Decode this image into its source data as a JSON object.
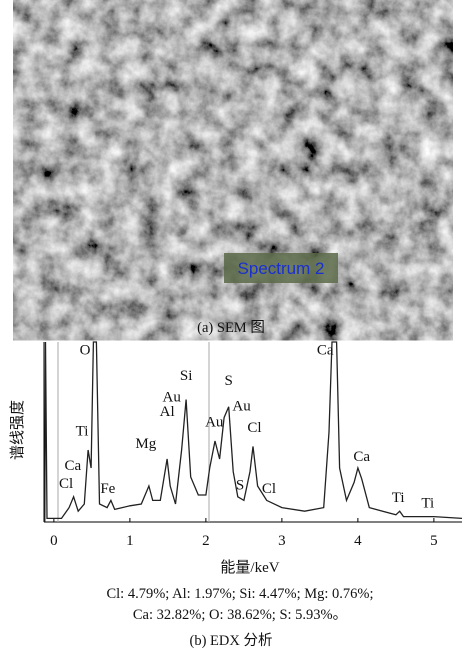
{
  "sem": {
    "label": "Spectrum 2",
    "caption": "(a)  SEM 图"
  },
  "chart_data": {
    "type": "line",
    "x": [
      -0.12,
      -0.11,
      -0.09,
      0.1,
      0.2,
      0.26,
      0.32,
      0.4,
      0.45,
      0.49,
      0.52,
      0.56,
      0.6,
      0.7,
      0.75,
      0.8,
      1.0,
      1.15,
      1.25,
      1.3,
      1.4,
      1.49,
      1.53,
      1.6,
      1.68,
      1.74,
      1.8,
      1.9,
      2.0,
      2.05,
      2.12,
      2.18,
      2.24,
      2.3,
      2.36,
      2.42,
      2.5,
      2.58,
      2.62,
      2.68,
      2.8,
      3.0,
      3.3,
      3.55,
      3.62,
      3.66,
      3.72,
      3.76,
      3.85,
      3.95,
      4.0,
      4.05,
      4.15,
      4.5,
      4.55,
      4.6,
      5.0,
      5.37
    ],
    "values": [
      0,
      100,
      2,
      2,
      8,
      14,
      6,
      10,
      40,
      30,
      100,
      100,
      10,
      8,
      12,
      7,
      9,
      10,
      20,
      12,
      12,
      35,
      20,
      10,
      40,
      68,
      25,
      15,
      15,
      30,
      45,
      35,
      58,
      64,
      28,
      14,
      12,
      28,
      42,
      20,
      12,
      8,
      6,
      8,
      50,
      100,
      100,
      30,
      12,
      22,
      30,
      24,
      8,
      4,
      6,
      3,
      3,
      2
    ],
    "color": "#222222",
    "xlim": [
      -0.13,
      5.37
    ],
    "ylim": [
      0,
      100
    ],
    "xticks": [
      0,
      1,
      2,
      3,
      4,
      5
    ],
    "xlabel": "能量/keV",
    "ylabel": "谱线强度",
    "annotations": [
      {
        "text": "O",
        "x": 0.41,
        "y": 93
      },
      {
        "text": "Ti",
        "x": 0.37,
        "y": 48
      },
      {
        "text": "Ca",
        "x": 0.25,
        "y": 29
      },
      {
        "text": "Cl",
        "x": 0.16,
        "y": 19
      },
      {
        "text": "Fe",
        "x": 0.71,
        "y": 16
      },
      {
        "text": "Mg",
        "x": 1.21,
        "y": 41
      },
      {
        "text": "Al",
        "x": 1.49,
        "y": 59
      },
      {
        "text": "Au",
        "x": 1.55,
        "y": 67
      },
      {
        "text": "Si",
        "x": 1.74,
        "y": 79
      },
      {
        "text": "Au",
        "x": 2.11,
        "y": 53
      },
      {
        "text": "S",
        "x": 2.3,
        "y": 76
      },
      {
        "text": "Au",
        "x": 2.47,
        "y": 62
      },
      {
        "text": "Cl",
        "x": 2.64,
        "y": 50
      },
      {
        "text": "S",
        "x": 2.45,
        "y": 18
      },
      {
        "text": "Cl",
        "x": 2.83,
        "y": 16
      },
      {
        "text": "Ca",
        "x": 3.57,
        "y": 93
      },
      {
        "text": "Ca",
        "x": 4.05,
        "y": 34
      },
      {
        "text": "Ti",
        "x": 4.53,
        "y": 11
      },
      {
        "text": "Ti",
        "x": 4.92,
        "y": 8
      }
    ],
    "composition": [
      "Cl: 4.79%; Al: 1.97%; Si: 4.47%; Mg: 0.76%;",
      "Ca: 32.82%; O: 38.62%; S: 5.93%。"
    ],
    "caption": "(b)  EDX 分析"
  }
}
